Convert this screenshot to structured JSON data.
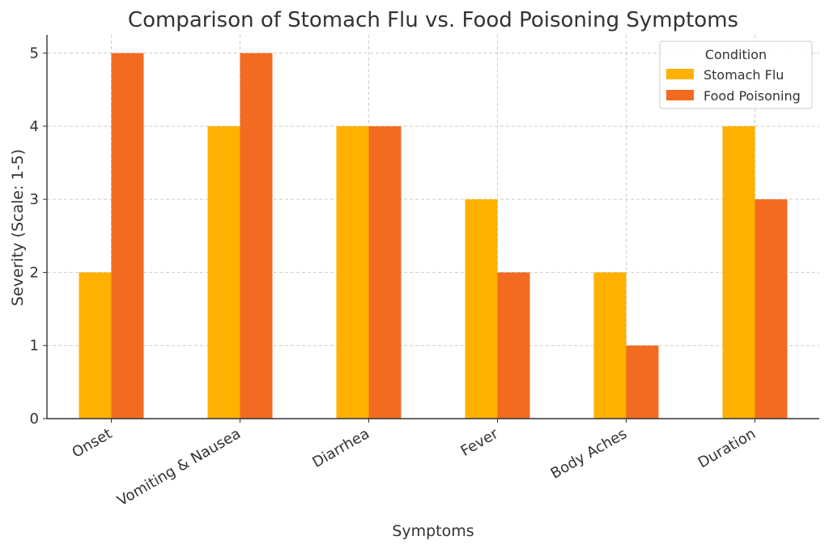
{
  "chart_data": {
    "type": "bar",
    "title": "Comparison of Stomach Flu vs. Food Poisoning Symptoms",
    "xlabel": "Symptoms",
    "ylabel": "Severity (Scale: 1-5)",
    "categories": [
      "Onset",
      "Vomiting & Nausea",
      "Diarrhea",
      "Fever",
      "Body Aches",
      "Duration"
    ],
    "series": [
      {
        "name": "Stomach Flu",
        "values": [
          2,
          4,
          4,
          3,
          2,
          4
        ],
        "color": "#FFB000"
      },
      {
        "name": "Food Poisoning",
        "values": [
          5,
          5,
          4,
          2,
          1,
          3
        ],
        "color": "#F26B21"
      }
    ],
    "ylim": [
      0,
      5.25
    ],
    "yticks": [
      0,
      1,
      2,
      3,
      4,
      5
    ],
    "grid": true,
    "legend": {
      "title": "Condition",
      "position": "top-right"
    }
  }
}
